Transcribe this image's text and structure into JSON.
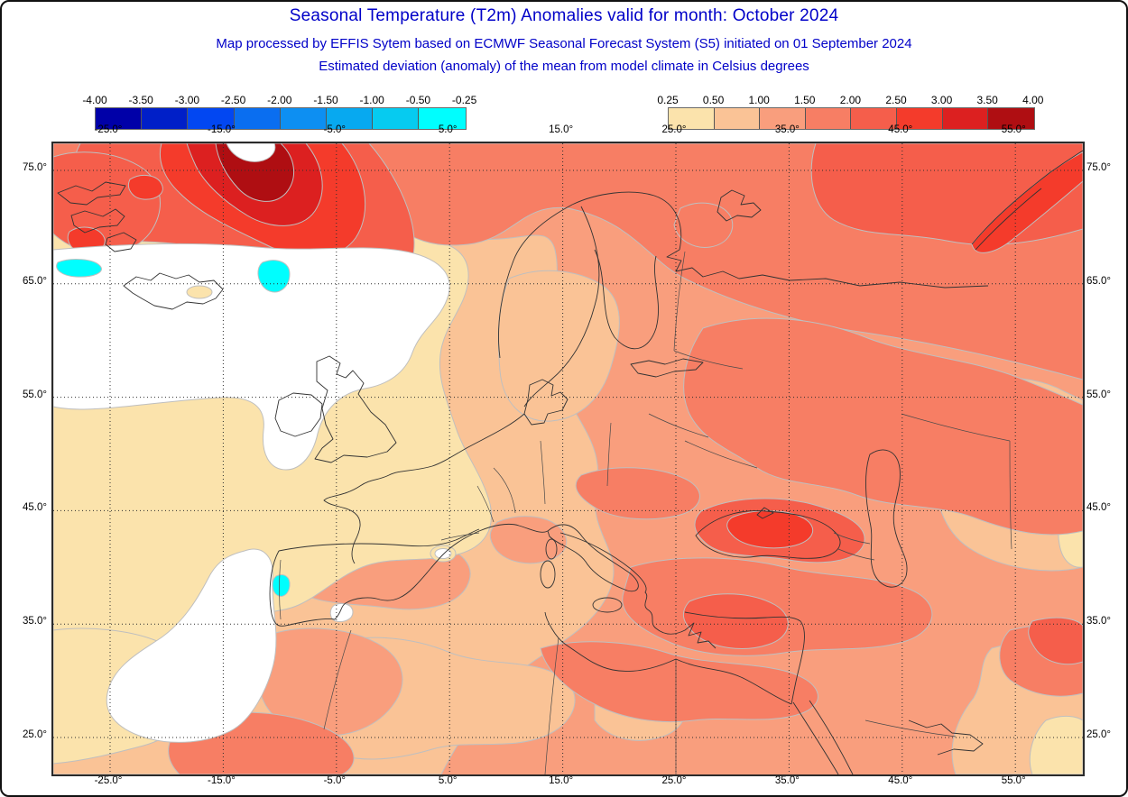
{
  "header": {
    "title": "Seasonal Temperature (T2m) Anomalies valid for month: October 2024",
    "subtitle1": "Map processed by EFFIS Sytem based on ECMWF Seasonal Forecast System (S5) initiated on 01 September 2024",
    "subtitle2": "Estimated deviation (anomaly) of the mean from model climate in Celsius degrees",
    "text_color": "#0000C8"
  },
  "legend": {
    "negative": {
      "ticks": [
        "-4.00",
        "-3.50",
        "-3.00",
        "-2.50",
        "-2.00",
        "-1.50",
        "-1.00",
        "-0.50",
        "-0.25"
      ],
      "colors": [
        "#0000A8",
        "#001FC8",
        "#0247F2",
        "#0A6EF0",
        "#0D8FF2",
        "#07A9F0",
        "#06CBF0",
        "#00FEFE"
      ]
    },
    "positive": {
      "ticks": [
        "0.25",
        "0.50",
        "1.00",
        "1.50",
        "2.00",
        "2.50",
        "3.00",
        "3.50",
        "4.00"
      ],
      "colors": [
        "#FBE3AC",
        "#FAC396",
        "#F99E7D",
        "#F77E64",
        "#F55E4B",
        "#F43B2B",
        "#DC2020",
        "#AF0E12"
      ]
    },
    "units": "Celsius degrees"
  },
  "map": {
    "x_axis_labels": [
      "-25.0°",
      "-15.0°",
      "-5.0°",
      "5.0°",
      "15.0°",
      "25.0°",
      "35.0°",
      "45.0°",
      "55.0°"
    ],
    "y_axis_labels": [
      "75.0°",
      "65.0°",
      "55.0°",
      "45.0°",
      "35.0°",
      "25.0°"
    ],
    "no_data_color": "#FFFFFF",
    "cold_spot_color": "#00FEFE",
    "coastline_color": "#333333",
    "contour_line_color": "#BFBFBF",
    "grid_color": "#2E2E2E"
  }
}
